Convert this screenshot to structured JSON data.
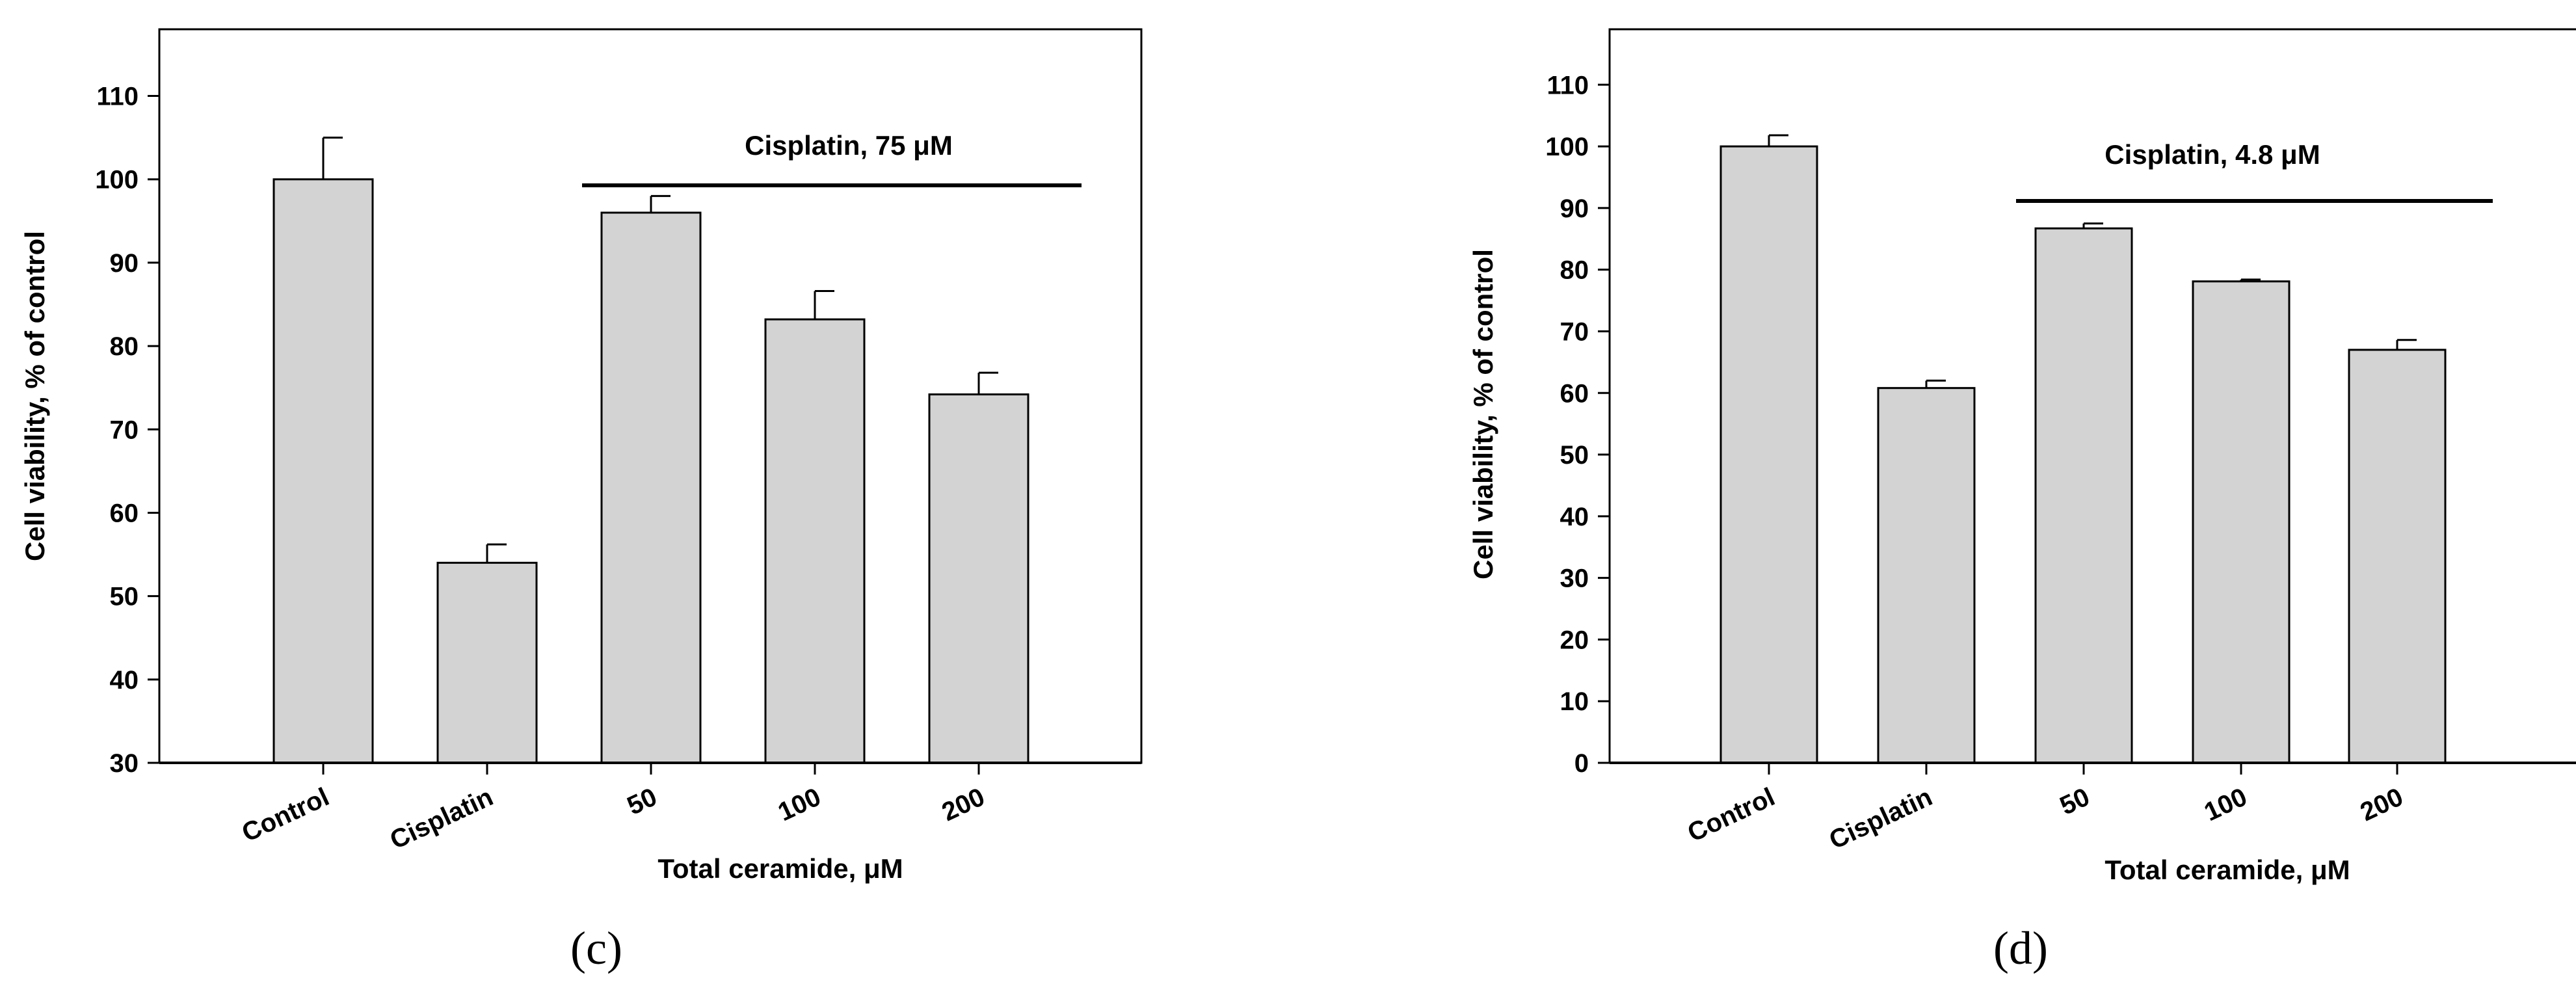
{
  "chart_data": [
    {
      "type": "bar",
      "panel_label": "(c)",
      "categories": [
        "Control",
        "Cisplatin",
        "50",
        "100",
        "200"
      ],
      "values": [
        100,
        54,
        96,
        83.2,
        74.2
      ],
      "errors": [
        5,
        2.2,
        2,
        3.4,
        2.6
      ],
      "xlabel": "Total ceramide, μM",
      "ylabel": "Cell viability, % of control",
      "ylim": [
        30,
        118
      ],
      "yticks": [
        30,
        40,
        50,
        60,
        70,
        80,
        90,
        100,
        110
      ],
      "bar_color": "#d3d3d3",
      "bracket": {
        "label": "Cisplatin, 75 μM",
        "from_category": "50"
      },
      "frame": "box",
      "grid": false
    },
    {
      "type": "bar",
      "panel_label": "(d)",
      "categories": [
        "Control",
        "Cisplatin",
        "50",
        "100",
        "200"
      ],
      "values": [
        100,
        60.8,
        86.7,
        78.1,
        67
      ],
      "errors": [
        1.8,
        1.2,
        0.8,
        0.3,
        1.6
      ],
      "xlabel": "Total ceramide, μM",
      "ylabel": "Cell viability, % of control",
      "ylim": [
        0,
        119
      ],
      "yticks": [
        0,
        10,
        20,
        30,
        40,
        50,
        60,
        70,
        80,
        90,
        100,
        110
      ],
      "bar_color": "#d3d3d3",
      "bracket": {
        "label": "Cisplatin, 4.8 μM",
        "from_category": "50"
      },
      "frame": "box",
      "grid": false
    }
  ]
}
